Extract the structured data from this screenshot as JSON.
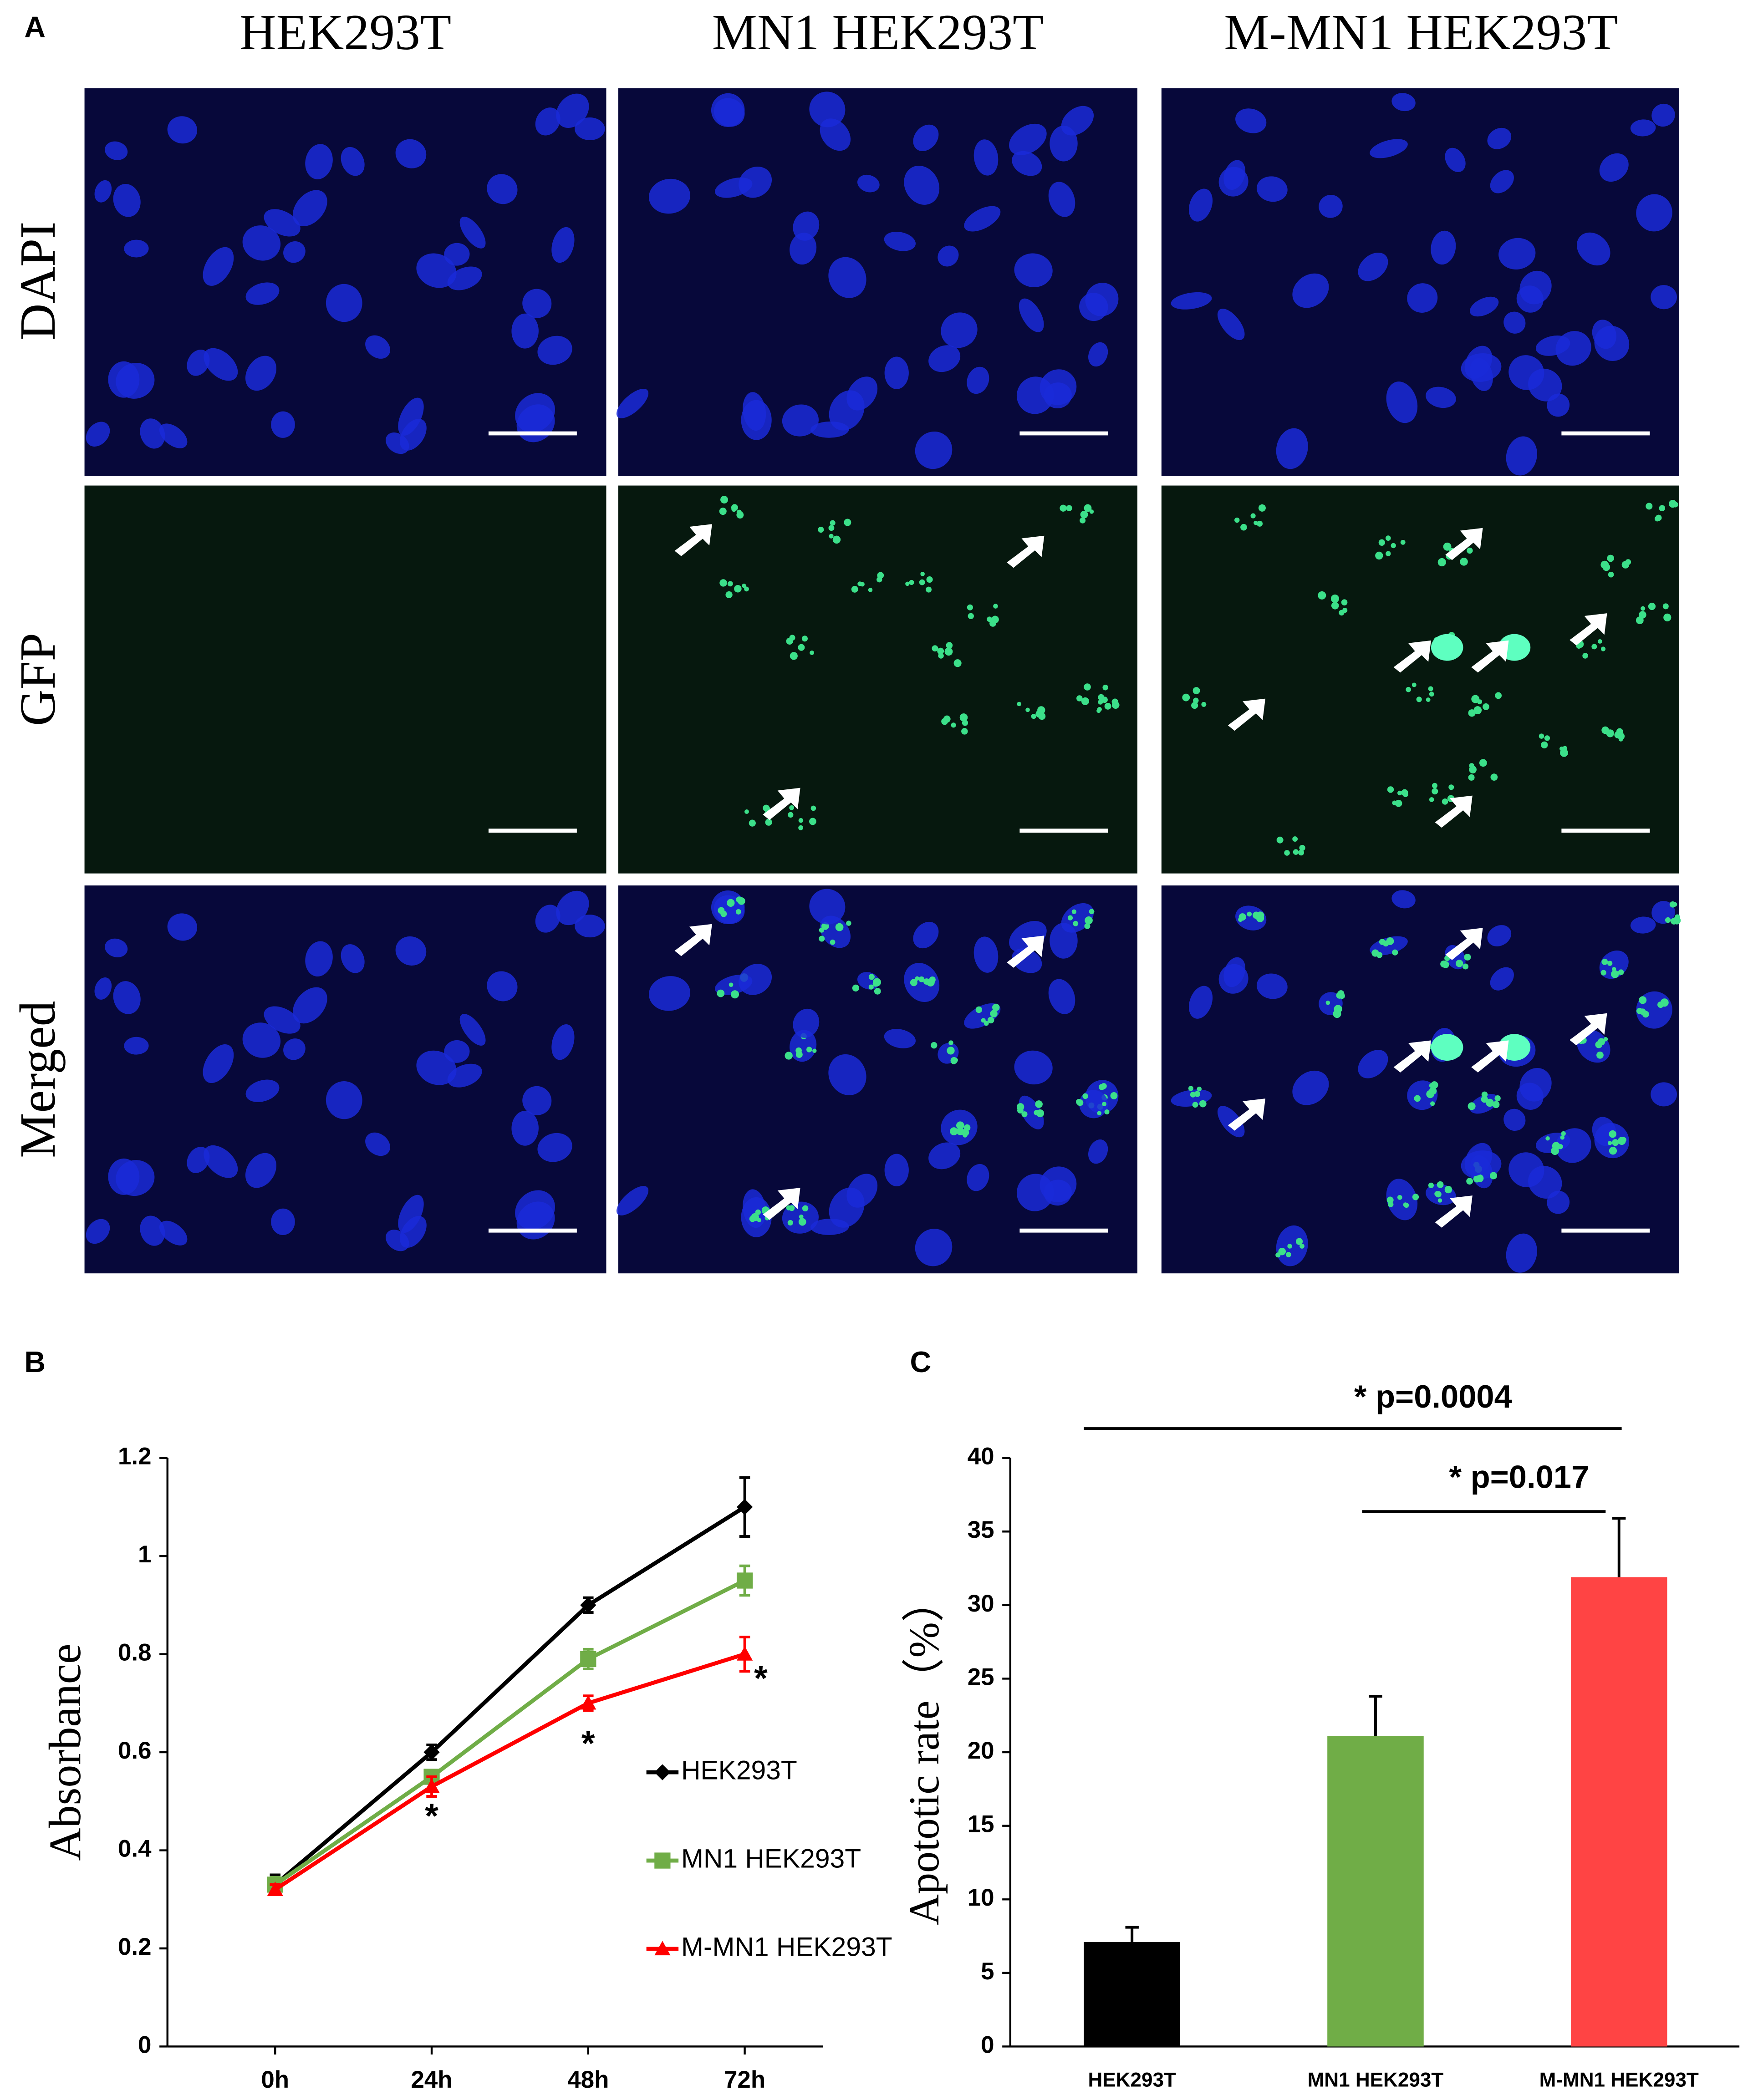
{
  "panel_a": {
    "label": "A",
    "columns": [
      "HEK293T",
      "MN1 HEK293T",
      "M-MN1 HEK293T"
    ],
    "rows": [
      "DAPI",
      "GFP",
      "Merged"
    ]
  },
  "chart_data": [
    {
      "type": "line",
      "panel_label": "B",
      "ylabel": "Absorbance",
      "categories": [
        "0h",
        "24h",
        "48h",
        "72h"
      ],
      "ylim": [
        0,
        1.2
      ],
      "yticks": [
        0,
        0.2,
        0.4,
        0.6,
        0.8,
        1,
        1.2
      ],
      "series": [
        {
          "name": "HEK293T",
          "color": "#000000",
          "marker": "diamond",
          "values": [
            0.33,
            0.6,
            0.9,
            1.1
          ],
          "errors": [
            0.02,
            0.015,
            0.015,
            0.06
          ]
        },
        {
          "name": "MN1 HEK293T",
          "color": "#70ad47",
          "marker": "square",
          "values": [
            0.33,
            0.55,
            0.79,
            0.95
          ],
          "errors": [
            0.015,
            0.01,
            0.02,
            0.03
          ]
        },
        {
          "name": "M-MN1 HEK293T",
          "color": "#ff0000",
          "marker": "triangle",
          "values": [
            0.32,
            0.53,
            0.7,
            0.8
          ],
          "errors": [
            0.01,
            0.02,
            0.015,
            0.035
          ]
        }
      ],
      "annotations": [
        "*",
        "*",
        "*"
      ]
    },
    {
      "type": "bar",
      "panel_label": "C",
      "ylabel": "Apototic rate（%）",
      "categories": [
        "HEK293T",
        "MN1 HEK293T",
        "M-MN1 HEK293T"
      ],
      "values": [
        7.1,
        21.1,
        31.9
      ],
      "errors": [
        1.0,
        2.7,
        4.0
      ],
      "colors": [
        "#000000",
        "#70ad47",
        "#ff4444"
      ],
      "ylim": [
        0,
        40
      ],
      "yticks": [
        0,
        5,
        10,
        15,
        20,
        25,
        30,
        35,
        40
      ],
      "annotations": [
        "* p=0.0004",
        "* p=0.017"
      ]
    }
  ]
}
